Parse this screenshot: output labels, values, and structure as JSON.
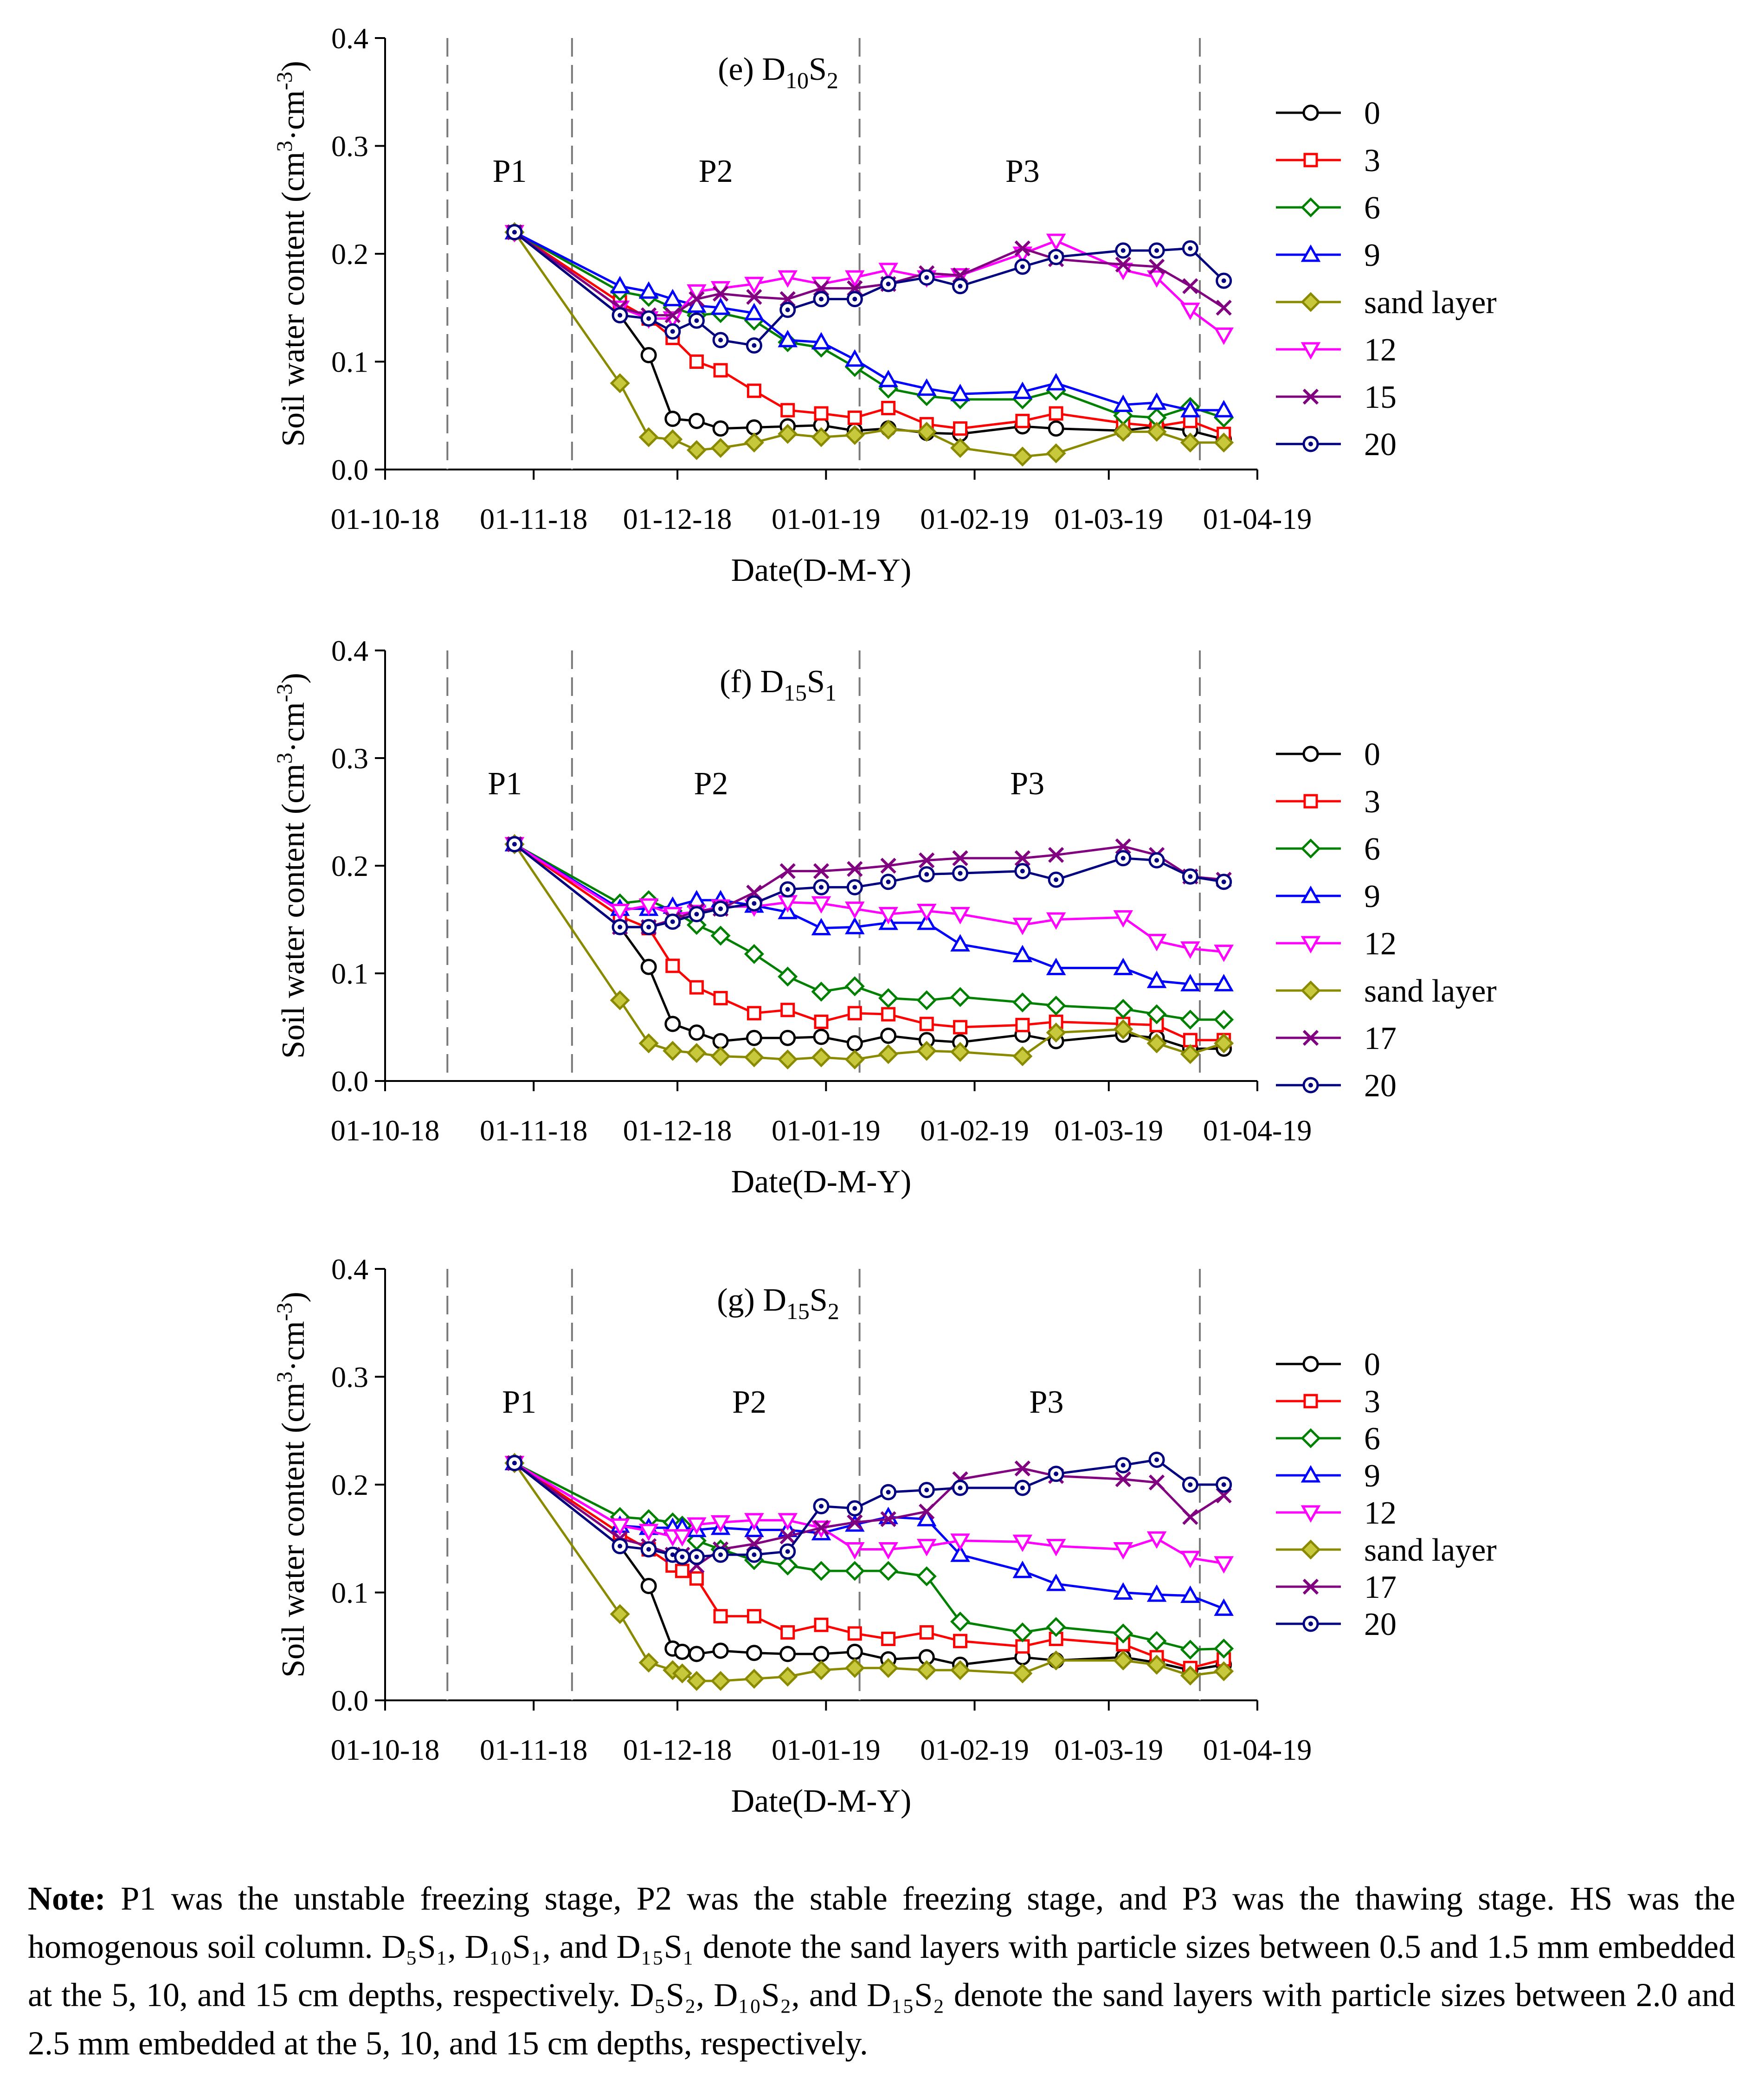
{
  "chart_data": [
    {
      "type": "line",
      "panel_id": "e",
      "title_prefix": "(e) D",
      "title_sub1": "10",
      "title_mid": "S",
      "title_sub2": "2",
      "ylabel": "Soil water content (cm",
      "ylabel_sup1": "3",
      "ylabel_mid": "·cm",
      "ylabel_sup2": "-3",
      "ylabel_end": ")",
      "xlabel": "Date(D-M-Y)",
      "ylim": [
        0,
        0.4
      ],
      "yticks": [
        "0.0",
        "0.1",
        "0.2",
        "0.3",
        "0.4"
      ],
      "xlim": [
        0,
        182
      ],
      "xticks": [
        {
          "label": "01-10-18",
          "day": 0
        },
        {
          "label": "01-11-18",
          "day": 31
        },
        {
          "label": "01-12-18",
          "day": 61
        },
        {
          "label": "01-01-19",
          "day": 92
        },
        {
          "label": "01-02-19",
          "day": 123
        },
        {
          "label": "01-03-19",
          "day": 151
        },
        {
          "label": "01-04-19",
          "day": 182
        }
      ],
      "phase_boundaries": [
        13,
        39,
        99,
        170
      ],
      "phases": [
        {
          "label": "P1",
          "day": 26
        },
        {
          "label": "P2",
          "day": 69
        },
        {
          "label": "P3",
          "day": 133
        }
      ],
      "x": [
        27,
        49,
        55,
        60,
        65,
        70,
        77,
        84,
        91,
        98,
        105,
        113,
        120,
        133,
        140,
        154,
        161,
        168,
        175
      ],
      "series": [
        {
          "name": "0",
          "color": "#000000",
          "marker": "circle",
          "fill": "white",
          "values": [
            0.22,
            0.143,
            0.106,
            0.047,
            0.045,
            0.038,
            0.039,
            0.04,
            0.041,
            0.036,
            0.038,
            0.034,
            0.033,
            0.04,
            0.038,
            0.036,
            0.04,
            0.036,
            0.028
          ]
        },
        {
          "name": "3",
          "color": "#ff0000",
          "marker": "square",
          "fill": "white",
          "values": [
            0.22,
            0.155,
            0.14,
            0.122,
            0.1,
            0.092,
            0.073,
            0.055,
            0.052,
            0.048,
            0.057,
            0.042,
            0.038,
            0.045,
            0.052,
            0.043,
            0.04,
            0.045,
            0.033
          ]
        },
        {
          "name": "6",
          "color": "#008000",
          "marker": "diamond",
          "fill": "white",
          "values": [
            0.22,
            0.165,
            0.16,
            0.15,
            0.143,
            0.145,
            0.138,
            0.118,
            0.113,
            0.095,
            0.075,
            0.068,
            0.065,
            0.065,
            0.073,
            0.05,
            0.048,
            0.058,
            0.048
          ]
        },
        {
          "name": "9",
          "color": "#0000ff",
          "marker": "triangle-up",
          "fill": "white",
          "values": [
            0.22,
            0.17,
            0.165,
            0.158,
            0.152,
            0.15,
            0.145,
            0.12,
            0.118,
            0.102,
            0.083,
            0.075,
            0.07,
            0.072,
            0.08,
            0.06,
            0.062,
            0.055,
            0.055
          ]
        },
        {
          "name": "sand layer",
          "color": "#8a8a00",
          "marker": "diamond",
          "fill": "#c8c83c",
          "values": [
            0.22,
            0.08,
            0.03,
            0.028,
            0.018,
            0.02,
            0.025,
            0.033,
            0.03,
            0.032,
            0.037,
            0.035,
            0.02,
            0.012,
            0.015,
            0.035,
            0.035,
            0.025,
            0.025
          ]
        },
        {
          "name": "12",
          "color": "#ff00ff",
          "marker": "triangle-down",
          "fill": "white",
          "values": [
            0.22,
            0.15,
            0.14,
            0.14,
            0.165,
            0.168,
            0.172,
            0.178,
            0.172,
            0.178,
            0.185,
            0.178,
            0.18,
            0.2,
            0.212,
            0.185,
            0.178,
            0.148,
            0.125
          ]
        },
        {
          "name": "15",
          "color": "#800080",
          "marker": "x",
          "fill": "none",
          "values": [
            0.22,
            0.15,
            0.143,
            0.143,
            0.158,
            0.163,
            0.16,
            0.158,
            0.168,
            0.168,
            0.172,
            0.182,
            0.18,
            0.205,
            0.195,
            0.19,
            0.188,
            0.17,
            0.15
          ]
        },
        {
          "name": "20",
          "color": "#000080",
          "marker": "circle-dot",
          "fill": "white",
          "values": [
            0.22,
            0.143,
            0.14,
            0.128,
            0.138,
            0.12,
            0.115,
            0.148,
            0.158,
            0.158,
            0.172,
            0.178,
            0.17,
            0.188,
            0.197,
            0.203,
            0.203,
            0.205,
            0.175
          ]
        }
      ]
    },
    {
      "type": "line",
      "panel_id": "f",
      "title_prefix": "(f) D",
      "title_sub1": "15",
      "title_mid": "S",
      "title_sub2": "1",
      "ylabel": "Soil water content (cm",
      "ylabel_sup1": "3",
      "ylabel_mid": "·cm",
      "ylabel_sup2": "-3",
      "ylabel_end": ")",
      "xlabel": "Date(D-M-Y)",
      "ylim": [
        0,
        0.4
      ],
      "yticks": [
        "0.0",
        "0.1",
        "0.2",
        "0.3",
        "0.4"
      ],
      "xlim": [
        0,
        182
      ],
      "xticks": [
        {
          "label": "01-10-18",
          "day": 0
        },
        {
          "label": "01-11-18",
          "day": 31
        },
        {
          "label": "01-12-18",
          "day": 61
        },
        {
          "label": "01-01-19",
          "day": 92
        },
        {
          "label": "01-02-19",
          "day": 123
        },
        {
          "label": "01-03-19",
          "day": 151
        },
        {
          "label": "01-04-19",
          "day": 182
        }
      ],
      "phase_boundaries": [
        13,
        39,
        99,
        170
      ],
      "phases": [
        {
          "label": "P1",
          "day": 25
        },
        {
          "label": "P2",
          "day": 68
        },
        {
          "label": "P3",
          "day": 134
        }
      ],
      "x": [
        27,
        49,
        55,
        60,
        65,
        70,
        77,
        84,
        91,
        98,
        105,
        113,
        120,
        133,
        140,
        154,
        161,
        168,
        175
      ],
      "series": [
        {
          "name": "0",
          "color": "#000000",
          "marker": "circle",
          "fill": "white",
          "values": [
            0.22,
            0.143,
            0.106,
            0.053,
            0.045,
            0.037,
            0.04,
            0.04,
            0.041,
            0.035,
            0.042,
            0.038,
            0.036,
            0.043,
            0.037,
            0.043,
            0.04,
            0.03,
            0.03
          ]
        },
        {
          "name": "3",
          "color": "#ff0000",
          "marker": "square",
          "fill": "white",
          "values": [
            0.22,
            0.153,
            0.142,
            0.107,
            0.087,
            0.077,
            0.063,
            0.066,
            0.055,
            0.063,
            0.062,
            0.053,
            0.05,
            0.052,
            0.055,
            0.053,
            0.052,
            0.038,
            0.038
          ]
        },
        {
          "name": "6",
          "color": "#008000",
          "marker": "diamond",
          "fill": "white",
          "values": [
            0.22,
            0.165,
            0.168,
            0.158,
            0.145,
            0.135,
            0.118,
            0.097,
            0.083,
            0.088,
            0.077,
            0.075,
            0.078,
            0.073,
            0.07,
            0.067,
            0.062,
            0.057,
            0.057
          ]
        },
        {
          "name": "9",
          "color": "#0000ff",
          "marker": "triangle-up",
          "fill": "white",
          "values": [
            0.22,
            0.16,
            0.16,
            0.162,
            0.168,
            0.168,
            0.163,
            0.157,
            0.142,
            0.143,
            0.147,
            0.147,
            0.127,
            0.117,
            0.105,
            0.105,
            0.093,
            0.09,
            0.09
          ]
        },
        {
          "name": "12",
          "color": "#ff00ff",
          "marker": "triangle-down",
          "fill": "white",
          "values": [
            0.22,
            0.158,
            0.163,
            0.155,
            0.157,
            0.162,
            0.162,
            0.166,
            0.165,
            0.16,
            0.155,
            0.158,
            0.155,
            0.145,
            0.15,
            0.152,
            0.13,
            0.123,
            0.12
          ]
        },
        {
          "name": "sand layer",
          "color": "#8a8a00",
          "marker": "diamond",
          "fill": "#c8c83c",
          "values": [
            0.22,
            0.075,
            0.035,
            0.028,
            0.026,
            0.023,
            0.022,
            0.02,
            0.022,
            0.02,
            0.025,
            0.028,
            0.027,
            0.023,
            0.045,
            0.048,
            0.035,
            0.025,
            0.035
          ]
        },
        {
          "name": "17",
          "color": "#800080",
          "marker": "x",
          "fill": "none",
          "values": [
            0.22,
            0.143,
            0.143,
            0.15,
            0.158,
            0.16,
            0.175,
            0.195,
            0.195,
            0.197,
            0.2,
            0.205,
            0.207,
            0.207,
            0.21,
            0.218,
            0.21,
            0.19,
            0.187
          ]
        },
        {
          "name": "20",
          "color": "#000080",
          "marker": "circle-dot",
          "fill": "white",
          "values": [
            0.22,
            0.143,
            0.143,
            0.148,
            0.155,
            0.16,
            0.165,
            0.178,
            0.18,
            0.18,
            0.185,
            0.192,
            0.193,
            0.195,
            0.187,
            0.207,
            0.205,
            0.19,
            0.185
          ]
        }
      ]
    },
    {
      "type": "line",
      "panel_id": "g",
      "title_prefix": "(g) D",
      "title_sub1": "15",
      "title_mid": "S",
      "title_sub2": "2",
      "ylabel": "Soil water content (cm",
      "ylabel_sup1": "3",
      "ylabel_mid": "·cm",
      "ylabel_sup2": "-3",
      "ylabel_end": ")",
      "xlabel": "Date(D-M-Y)",
      "ylim": [
        0,
        0.4
      ],
      "yticks": [
        "0.0",
        "0.1",
        "0.2",
        "0.3",
        "0.4"
      ],
      "xlim": [
        0,
        182
      ],
      "xticks": [
        {
          "label": "01-10-18",
          "day": 0
        },
        {
          "label": "01-11-18",
          "day": 31
        },
        {
          "label": "01-12-18",
          "day": 61
        },
        {
          "label": "01-01-19",
          "day": 92
        },
        {
          "label": "01-02-19",
          "day": 123
        },
        {
          "label": "01-03-19",
          "day": 151
        },
        {
          "label": "01-04-19",
          "day": 182
        }
      ],
      "phase_boundaries": [
        13,
        39,
        99,
        170
      ],
      "phases": [
        {
          "label": "P1",
          "day": 28
        },
        {
          "label": "P2",
          "day": 76
        },
        {
          "label": "P3",
          "day": 138
        }
      ],
      "x": [
        27,
        49,
        55,
        60,
        62,
        65,
        70,
        77,
        84,
        91,
        98,
        105,
        113,
        120,
        133,
        140,
        154,
        161,
        168,
        175
      ],
      "series": [
        {
          "name": "0",
          "color": "#000000",
          "marker": "circle",
          "fill": "white",
          "values": [
            0.22,
            0.143,
            0.106,
            0.048,
            0.045,
            0.043,
            0.046,
            0.044,
            0.043,
            0.043,
            0.045,
            0.038,
            0.04,
            0.033,
            0.04,
            0.037,
            0.04,
            0.035,
            0.028,
            0.033
          ]
        },
        {
          "name": "3",
          "color": "#ff0000",
          "marker": "square",
          "fill": "white",
          "values": [
            0.22,
            0.155,
            0.14,
            0.125,
            0.12,
            0.113,
            0.078,
            0.078,
            0.063,
            0.07,
            0.062,
            0.057,
            0.063,
            0.055,
            0.05,
            0.057,
            0.052,
            0.04,
            0.03,
            0.038
          ]
        },
        {
          "name": "6",
          "color": "#008000",
          "marker": "diamond",
          "fill": "white",
          "values": [
            0.22,
            0.17,
            0.168,
            0.165,
            0.162,
            0.148,
            0.14,
            0.13,
            0.125,
            0.12,
            0.12,
            0.12,
            0.115,
            0.073,
            0.063,
            0.068,
            0.062,
            0.055,
            0.047,
            0.048
          ]
        },
        {
          "name": "9",
          "color": "#0000ff",
          "marker": "triangle-up",
          "fill": "white",
          "values": [
            0.22,
            0.162,
            0.16,
            0.16,
            0.16,
            0.158,
            0.16,
            0.158,
            0.158,
            0.155,
            0.163,
            0.17,
            0.168,
            0.135,
            0.12,
            0.108,
            0.1,
            0.098,
            0.097,
            0.085
          ]
        },
        {
          "name": "12",
          "color": "#ff00ff",
          "marker": "triangle-down",
          "fill": "white",
          "values": [
            0.22,
            0.162,
            0.157,
            0.152,
            0.152,
            0.163,
            0.165,
            0.167,
            0.167,
            0.16,
            0.14,
            0.14,
            0.143,
            0.148,
            0.147,
            0.143,
            0.14,
            0.15,
            0.132,
            0.127
          ]
        },
        {
          "name": "sand layer",
          "color": "#8a8a00",
          "marker": "diamond",
          "fill": "#c8c83c",
          "values": [
            0.22,
            0.08,
            0.035,
            0.028,
            0.025,
            0.018,
            0.018,
            0.02,
            0.022,
            0.028,
            0.03,
            0.03,
            0.028,
            0.028,
            0.025,
            0.037,
            0.037,
            0.033,
            0.023,
            0.027
          ]
        },
        {
          "name": "17",
          "color": "#800080",
          "marker": "x",
          "fill": "none",
          "values": [
            0.22,
            0.15,
            0.143,
            0.135,
            0.135,
            0.125,
            0.14,
            0.145,
            0.152,
            0.16,
            0.165,
            0.168,
            0.175,
            0.205,
            0.215,
            0.208,
            0.205,
            0.202,
            0.17,
            0.19
          ]
        },
        {
          "name": "20",
          "color": "#000080",
          "marker": "circle-dot",
          "fill": "white",
          "values": [
            0.22,
            0.143,
            0.14,
            0.135,
            0.133,
            0.133,
            0.135,
            0.135,
            0.138,
            0.18,
            0.178,
            0.193,
            0.195,
            0.197,
            0.197,
            0.21,
            0.218,
            0.223,
            0.2,
            0.2
          ]
        }
      ]
    }
  ],
  "note": {
    "label": "Note:",
    "text": " P1 was the unstable freezing stage, P2 was the stable freezing stage, and P3 was the thawing stage. HS was the homogenous soil column. D₅S₁, D₁₀S₁, and D₁₅S₁ denote the sand layers with particle sizes between 0.5 and 1.5 mm embedded at the 5, 10, and 15 cm depths, respectively. D₅S₂, D₁₀S₂, and D₁₅S₂ denote the sand layers with particle sizes between 2.0 and 2.5 mm embedded at the 5, 10, and 15 cm depths, respectively."
  }
}
